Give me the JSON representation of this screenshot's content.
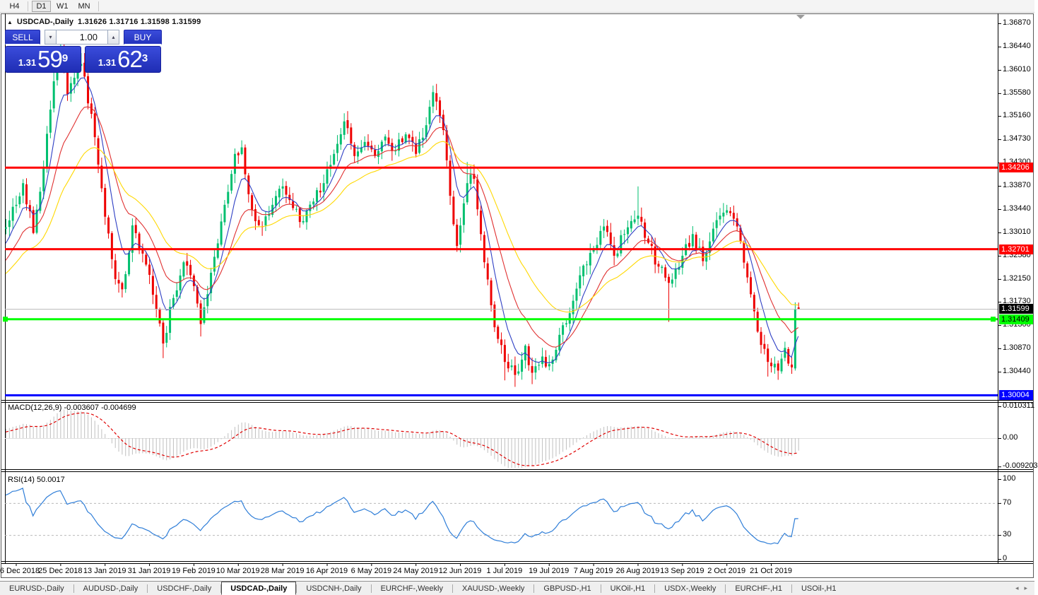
{
  "toolbar": {
    "timeframes": [
      {
        "label": "H4",
        "active": false
      },
      {
        "label": "D1",
        "active": true
      },
      {
        "label": "W1",
        "active": false
      },
      {
        "label": "MN",
        "active": false
      }
    ]
  },
  "symbol_header": {
    "collapse_icon": "▲",
    "title": "USDCAD-,Daily",
    "ohlc": "1.31626 1.31716 1.31598 1.31599"
  },
  "trade_widget": {
    "sell_label": "SELL",
    "buy_label": "BUY",
    "volume": "1.00",
    "sell_price": {
      "prefix": "1.31",
      "big": "59",
      "sup": "9"
    },
    "buy_price": {
      "prefix": "1.31",
      "big": "62",
      "sup": "3"
    }
  },
  "price_axis": {
    "labels": [
      "1.36870",
      "1.36440",
      "1.36010",
      "1.35580",
      "1.35160",
      "1.34730",
      "1.34300",
      "1.33870",
      "1.33440",
      "1.33010",
      "1.32580",
      "1.32150",
      "1.31730",
      "1.31300",
      "1.30870",
      "1.30440"
    ]
  },
  "macd_panel": {
    "label": "MACD(12,26,9) -0.003607 -0.004699",
    "axis_labels": [
      {
        "text": "0.010311",
        "value": 0.010311
      },
      {
        "text": "0.00",
        "value": 0
      },
      {
        "text": "-0.009203",
        "value": -0.009203
      }
    ]
  },
  "rsi_panel": {
    "label": "RSI(14) 50.0017",
    "axis_labels": [
      {
        "text": "100",
        "value": 100
      },
      {
        "text": "70",
        "value": 70
      },
      {
        "text": "30",
        "value": 30
      },
      {
        "text": "0",
        "value": 0
      }
    ],
    "dashed_levels": [
      70,
      30
    ]
  },
  "tab_bar": {
    "tabs": [
      {
        "label": "EURUSD-,Daily",
        "active": false
      },
      {
        "label": "AUDUSD-,Daily",
        "active": false
      },
      {
        "label": "USDCHF-,Daily",
        "active": false
      },
      {
        "label": "USDCAD-,Daily",
        "active": true
      },
      {
        "label": "USDCNH-,Daily",
        "active": false
      },
      {
        "label": "EURCHF-,Weekly",
        "active": false
      },
      {
        "label": "XAUUSD-,Weekly",
        "active": false
      },
      {
        "label": "GBPUSD-,H1",
        "active": false
      },
      {
        "label": "UKOil-,H1",
        "active": false
      },
      {
        "label": "USDX-,Weekly",
        "active": false
      },
      {
        "label": "EURCHF-,H1",
        "active": false
      },
      {
        "label": "USOil-,H1",
        "active": false
      }
    ],
    "nav_left": "◂",
    "nav_right": "▸"
  },
  "colors": {
    "candle_up": "#00bf6f",
    "candle_down": "#ee0000",
    "ma_blue": "#2e3fc4",
    "ma_red": "#e03131",
    "ma_yellow": "#ffd800",
    "macd_hist": "#bfbfbf",
    "macd_signal": "#e00000",
    "rsi_line": "#2f7ed8",
    "dashed_level": "#b9b9b9",
    "hline_red": "#ff0000",
    "hline_green": "#00ff00",
    "hline_blue": "#0000ff",
    "current_line": "#b8b8b8"
  },
  "chart_data": {
    "type": "candlestick",
    "title": "USDCAD-,Daily",
    "bars": 233,
    "y_range": [
      1.298,
      1.37
    ],
    "x_ticks": [
      {
        "i": 3,
        "label": "6 Dec 2018"
      },
      {
        "i": 16,
        "label": "25 Dec 2018"
      },
      {
        "i": 29,
        "label": "13 Jan 2019"
      },
      {
        "i": 42,
        "label": "31 Jan 2019"
      },
      {
        "i": 55,
        "label": "19 Feb 2019"
      },
      {
        "i": 68,
        "label": "10 Mar 2019"
      },
      {
        "i": 81,
        "label": "28 Mar 2019"
      },
      {
        "i": 94,
        "label": "16 Apr 2019"
      },
      {
        "i": 107,
        "label": "6 May 2019"
      },
      {
        "i": 120,
        "label": "24 May 2019"
      },
      {
        "i": 133,
        "label": "12 Jun 2019"
      },
      {
        "i": 146,
        "label": "1 Jul 2019"
      },
      {
        "i": 159,
        "label": "19 Jul 2019"
      },
      {
        "i": 172,
        "label": "7 Aug 2019"
      },
      {
        "i": 185,
        "label": "26 Aug 2019"
      },
      {
        "i": 198,
        "label": "13 Sep 2019"
      },
      {
        "i": 211,
        "label": "2 Oct 2019"
      },
      {
        "i": 224,
        "label": "21 Oct 2019"
      }
    ],
    "close_waypoints": [
      [
        0,
        1.331
      ],
      [
        3,
        1.3352
      ],
      [
        5,
        1.3392
      ],
      [
        8,
        1.33
      ],
      [
        11,
        1.342
      ],
      [
        14,
        1.358
      ],
      [
        16,
        1.3641
      ],
      [
        18,
        1.3556
      ],
      [
        22,
        1.3612
      ],
      [
        25,
        1.352
      ],
      [
        29,
        1.333
      ],
      [
        32,
        1.3215
      ],
      [
        34,
        1.3196
      ],
      [
        37,
        1.3314
      ],
      [
        40,
        1.3262
      ],
      [
        43,
        1.3186
      ],
      [
        46,
        1.3096
      ],
      [
        49,
        1.318
      ],
      [
        52,
        1.3246
      ],
      [
        55,
        1.3202
      ],
      [
        57,
        1.3132
      ],
      [
        61,
        1.3256
      ],
      [
        64,
        1.3352
      ],
      [
        67,
        1.3446
      ],
      [
        69,
        1.3458
      ],
      [
        72,
        1.3342
      ],
      [
        75,
        1.3312
      ],
      [
        78,
        1.3352
      ],
      [
        81,
        1.3386
      ],
      [
        84,
        1.3346
      ],
      [
        87,
        1.3322
      ],
      [
        90,
        1.3358
      ],
      [
        93,
        1.3392
      ],
      [
        96,
        1.3446
      ],
      [
        99,
        1.3506
      ],
      [
        102,
        1.3442
      ],
      [
        105,
        1.3468
      ],
      [
        108,
        1.3442
      ],
      [
        111,
        1.3478
      ],
      [
        114,
        1.3452
      ],
      [
        117,
        1.3482
      ],
      [
        120,
        1.3446
      ],
      [
        122,
        1.3476
      ],
      [
        125,
        1.356
      ],
      [
        128,
        1.349
      ],
      [
        131,
        1.3316
      ],
      [
        132,
        1.3276
      ],
      [
        135,
        1.3392
      ],
      [
        137,
        1.34
      ],
      [
        140,
        1.3246
      ],
      [
        143,
        1.3126
      ],
      [
        146,
        1.3062
      ],
      [
        149,
        1.3038
      ],
      [
        152,
        1.3092
      ],
      [
        154,
        1.3042
      ],
      [
        157,
        1.3072
      ],
      [
        159,
        1.3058
      ],
      [
        162,
        1.3112
      ],
      [
        165,
        1.3152
      ],
      [
        168,
        1.3222
      ],
      [
        172,
        1.3272
      ],
      [
        175,
        1.3312
      ],
      [
        178,
        1.3258
      ],
      [
        181,
        1.3298
      ],
      [
        183,
        1.3322
      ],
      [
        185,
        1.3332
      ],
      [
        188,
        1.3282
      ],
      [
        191,
        1.3238
      ],
      [
        194,
        1.3208
      ],
      [
        198,
        1.3258
      ],
      [
        201,
        1.3298
      ],
      [
        204,
        1.3248
      ],
      [
        207,
        1.3308
      ],
      [
        211,
        1.3342
      ],
      [
        214,
        1.3312
      ],
      [
        217,
        1.3218
      ],
      [
        220,
        1.3118
      ],
      [
        223,
        1.3062
      ],
      [
        226,
        1.3046
      ],
      [
        228,
        1.3088
      ],
      [
        230,
        1.3052
      ],
      [
        231,
        1.3159
      ],
      [
        232,
        1.31599
      ]
    ],
    "wick_highs": [
      [
        16,
        1.3658
      ],
      [
        22,
        1.3632
      ],
      [
        69,
        1.3471
      ],
      [
        99,
        1.3521
      ],
      [
        125,
        1.3572
      ],
      [
        135,
        1.3431
      ],
      [
        185,
        1.3386
      ],
      [
        211,
        1.3352
      ],
      [
        231,
        1.3172
      ]
    ],
    "wick_lows": [
      [
        34,
        1.3181
      ],
      [
        46,
        1.3069
      ],
      [
        57,
        1.3109
      ],
      [
        146,
        1.3028
      ],
      [
        149,
        1.3016
      ],
      [
        154,
        1.3021
      ],
      [
        194,
        1.3136
      ],
      [
        223,
        1.3035
      ],
      [
        226,
        1.3029
      ],
      [
        230,
        1.304
      ]
    ],
    "open_overrides": [
      [
        231,
        1.305
      ]
    ],
    "last_bar": {
      "open": 1.31626,
      "high": 1.31716,
      "low": 1.31598,
      "close": 1.31599
    },
    "hlines": [
      {
        "price": 1.34206,
        "label": "1.34206",
        "color": "#ff0000",
        "width": 3,
        "label_bg": "#ff0000",
        "label_fg": "#ffffff",
        "handles": false
      },
      {
        "price": 1.32701,
        "label": "1.32701",
        "color": "#ff0000",
        "width": 3,
        "label_bg": "#ff0000",
        "label_fg": "#ffffff",
        "handles": false
      },
      {
        "price": 1.31409,
        "label": "1.31409",
        "color": "#00ff00",
        "width": 3,
        "label_bg": "#00ff00",
        "label_fg": "#000000",
        "handles": true
      },
      {
        "price": 1.30004,
        "label": "1.30004",
        "color": "#0000ff",
        "width": 3,
        "label_bg": "#0000ff",
        "label_fg": "#ffffff",
        "handles": false
      }
    ],
    "current_price": {
      "price": 1.31599,
      "label": "1.31599",
      "label_bg": "#000000",
      "label_fg": "#ffffff"
    }
  }
}
